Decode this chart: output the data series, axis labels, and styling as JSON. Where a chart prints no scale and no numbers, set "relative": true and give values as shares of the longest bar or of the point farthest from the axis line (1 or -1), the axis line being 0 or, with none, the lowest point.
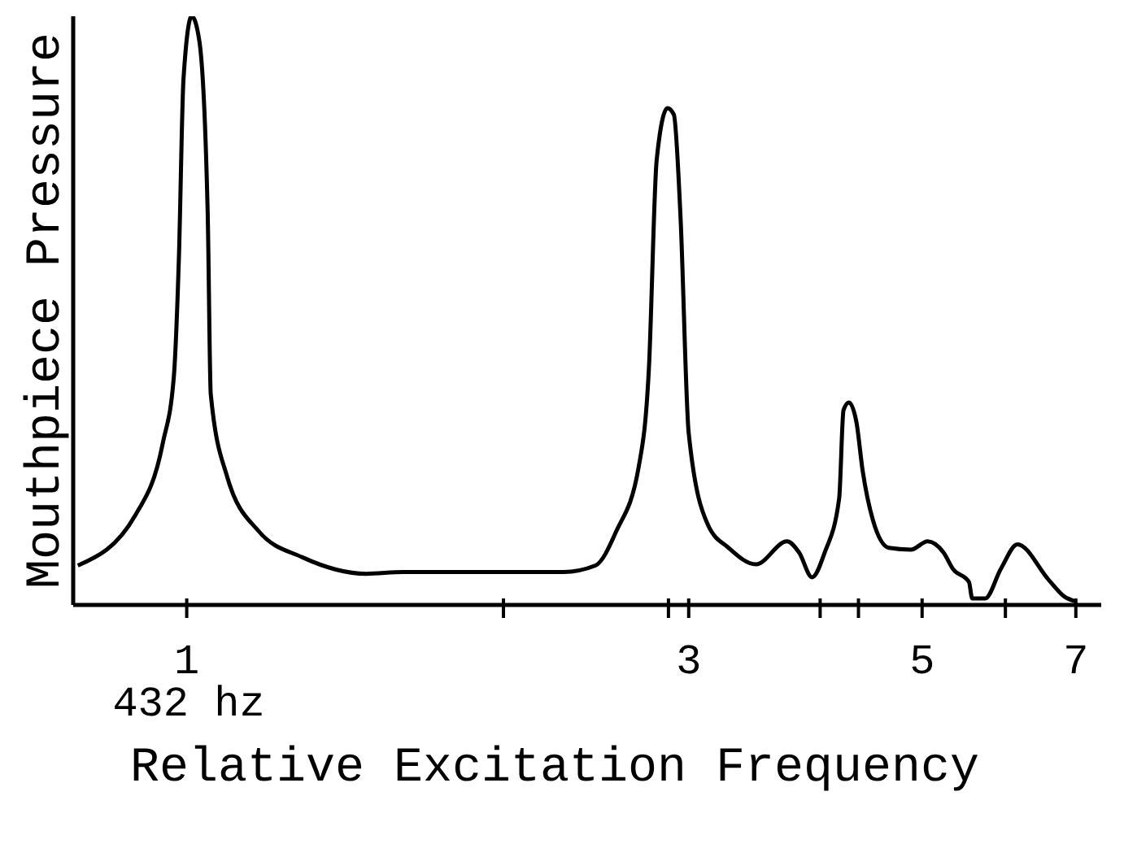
{
  "chart_data": {
    "type": "line",
    "xlabel": "Relative Excitation Frequency",
    "ylabel": "Mouthpiece Pressure",
    "relative": true,
    "log": "x",
    "xlim": [
      0.78,
      7.4
    ],
    "xticks": [
      1,
      {
        "value": 2,
        "label": null
      },
      {
        "value": 2.87,
        "label": null
      },
      3,
      {
        "value": 4,
        "label": null
      },
      {
        "value": 4.35,
        "label": null
      },
      5,
      {
        "value": 6,
        "label": null
      },
      7
    ],
    "annotations": [
      "432 hz"
    ],
    "marker": "none",
    "line_style": "solid",
    "grid": false,
    "legend": false,
    "series": [
      {
        "color": "#000000",
        "x": [
          0.788,
          0.894,
          0.949,
          0.972,
          0.983,
          0.993,
          1.011,
          1.028,
          1.047,
          1.054,
          1.092,
          1.171,
          1.288,
          1.481,
          1.606,
          2.28,
          2.446,
          2.56,
          2.69,
          2.75,
          2.797,
          2.864,
          2.904,
          2.946,
          3.0,
          3.129,
          3.274,
          3.476,
          3.72,
          3.82,
          3.93,
          4.04,
          4.17,
          4.21,
          4.26,
          4.33,
          4.39,
          4.49,
          4.65,
          4.88,
          5.06,
          5.24,
          5.35,
          5.54,
          5.58,
          5.74,
          5.94,
          6.16,
          6.6,
          6.83,
          7.0
        ],
        "values": [
          0.067,
          0.153,
          0.275,
          0.386,
          0.589,
          0.894,
          1.0,
          0.958,
          0.664,
          0.358,
          0.219,
          0.125,
          0.081,
          0.053,
          0.056,
          0.056,
          0.067,
          0.125,
          0.236,
          0.403,
          0.756,
          0.844,
          0.833,
          0.664,
          0.292,
          0.136,
          0.097,
          0.069,
          0.108,
          0.089,
          0.047,
          0.089,
          0.181,
          0.331,
          0.344,
          0.311,
          0.228,
          0.144,
          0.097,
          0.094,
          0.108,
          0.089,
          0.061,
          0.039,
          0.011,
          0.011,
          0.061,
          0.103,
          0.042,
          0.014,
          0.006
        ]
      }
    ]
  }
}
